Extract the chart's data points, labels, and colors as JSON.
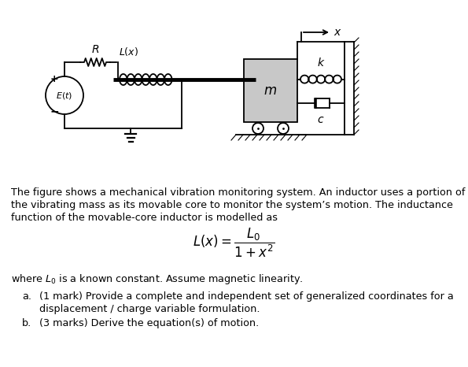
{
  "background_color": "#ffffff",
  "fig_width": 5.95,
  "fig_height": 4.66,
  "dpi": 100,
  "line1": "The figure shows a mechanical vibration monitoring system. An inductor uses a portion of",
  "line2": "the vibrating mass as its movable core to monitor the system’s motion. The inductance",
  "line3": "function of the movable-core inductor is modelled as",
  "item_a1": "(1 mark) Provide a complete and independent set of generalized coordinates for a",
  "item_a2": "displacement / charge variable formulation.",
  "item_b": "(3 marks) Derive the equation(s) of motion.",
  "where_line": "where $L_0$ is a known constant. Assume magnetic linearity.",
  "fs_body": 9.2
}
